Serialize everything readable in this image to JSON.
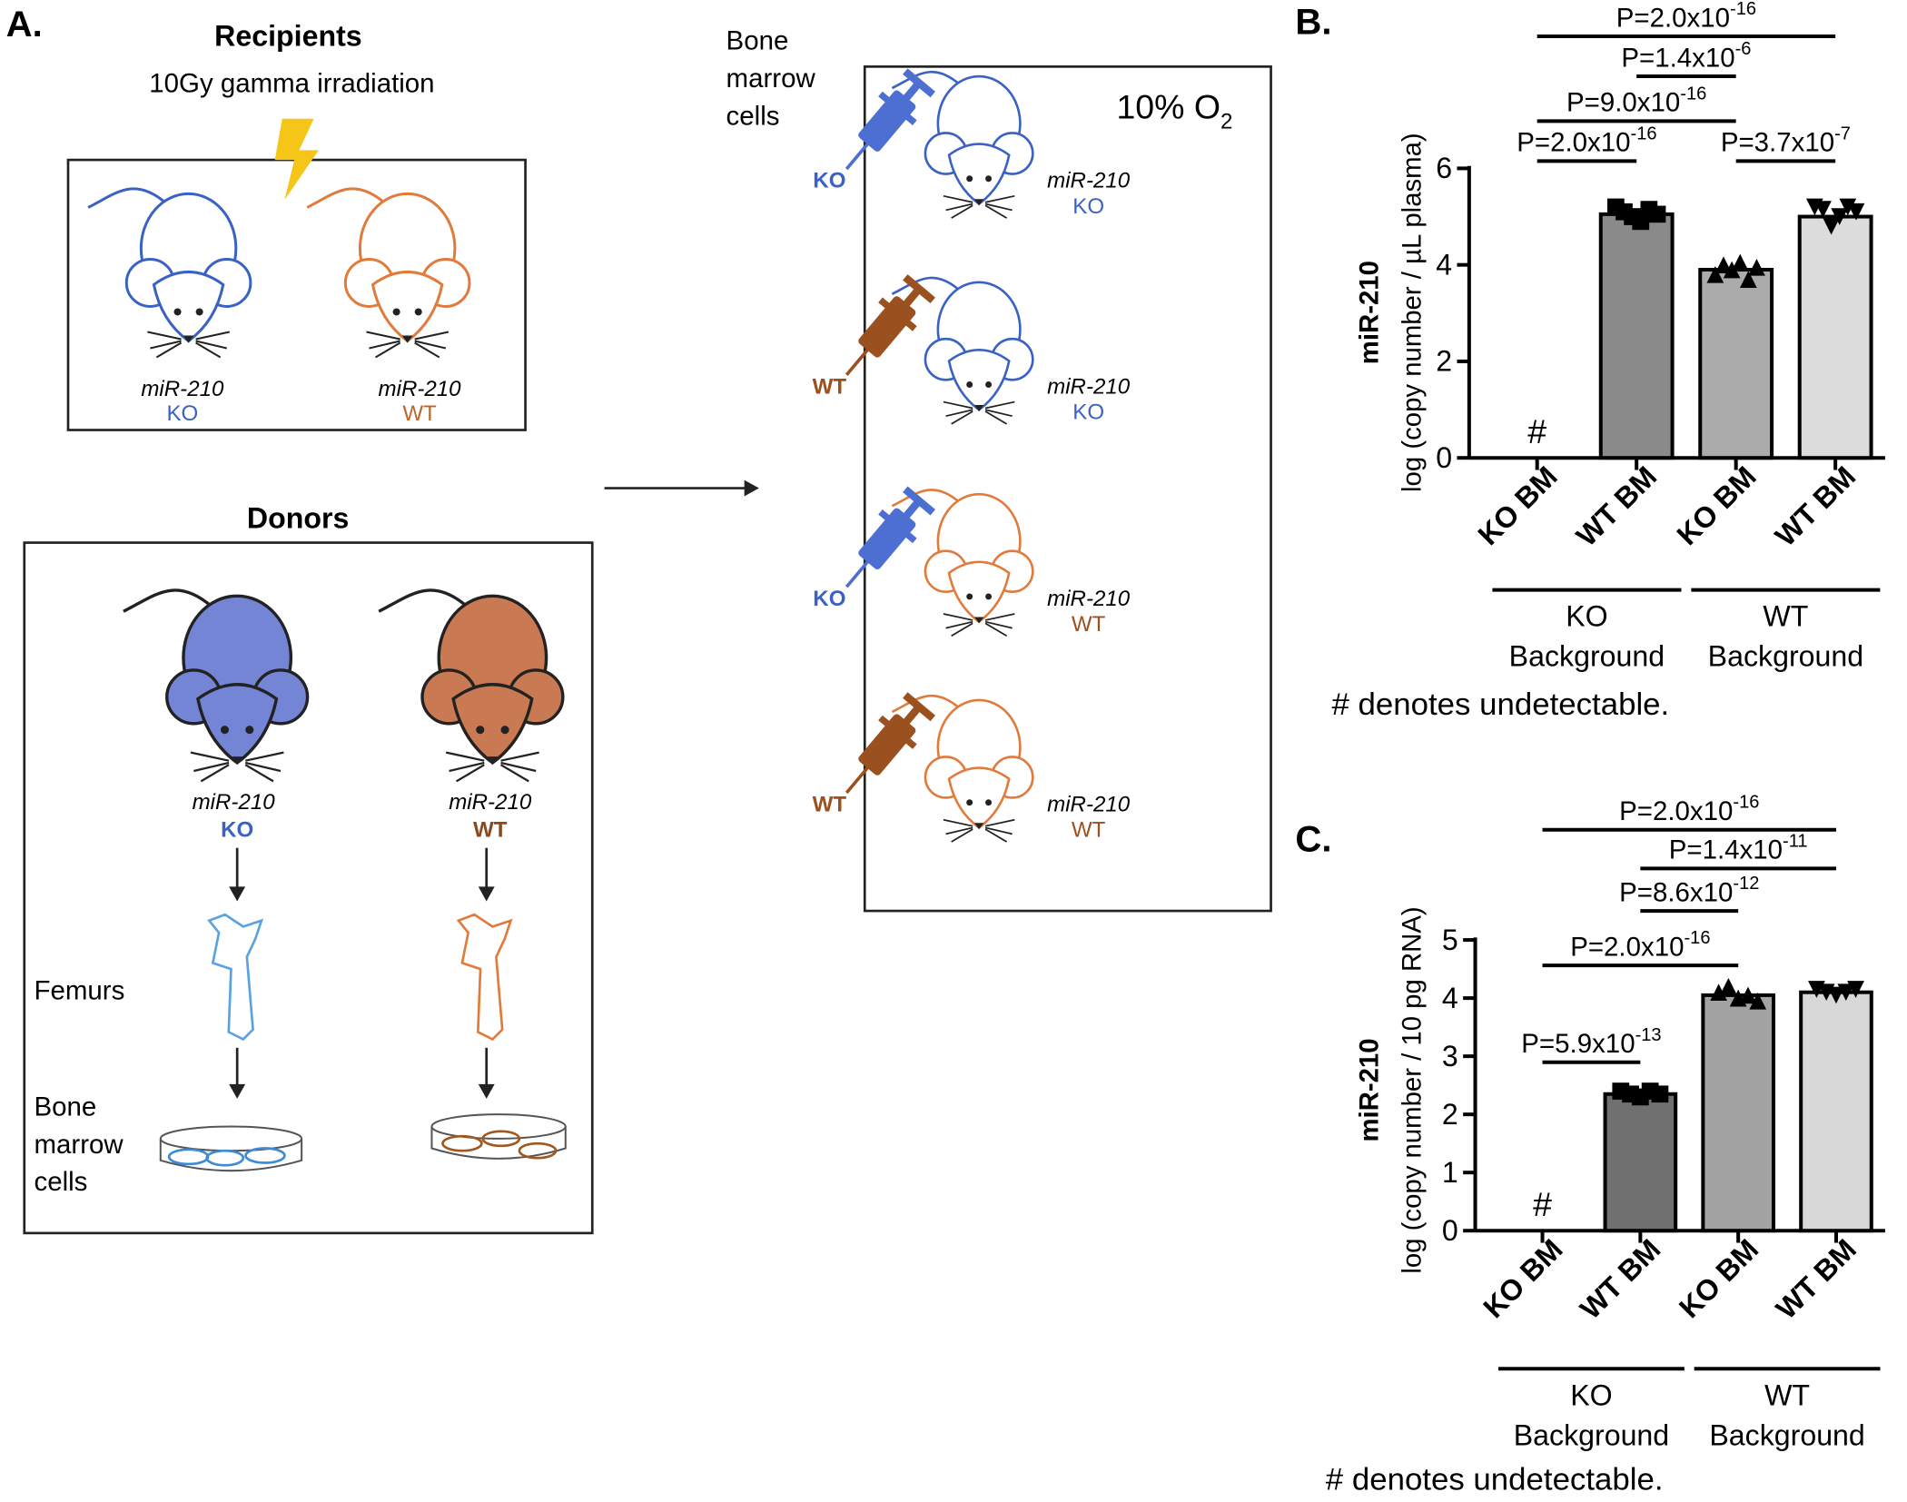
{
  "panel_a": {
    "label": "A.",
    "recipients": {
      "title": "Recipients",
      "treatment": "10Gy gamma irradiation",
      "mice": [
        {
          "gene": "miR-210",
          "genotype": "KO"
        },
        {
          "gene": "miR-210",
          "genotype": "WT"
        }
      ]
    },
    "donors": {
      "title": "Donors",
      "mice": [
        {
          "gene": "miR-210",
          "genotype": "KO"
        },
        {
          "gene": "miR-210",
          "genotype": "WT"
        }
      ],
      "femurs": "Femurs",
      "cells": [
        "Bone",
        "marrow",
        "cells"
      ]
    },
    "transplant": {
      "cells": [
        "Bone",
        "marrow",
        "cells"
      ],
      "oxygen": "10% O",
      "oxygen_subscript": "2",
      "groups": [
        {
          "donor": "KO",
          "gene": "miR-210",
          "recipient": "KO"
        },
        {
          "donor": "WT",
          "gene": "miR-210",
          "recipient": "KO"
        },
        {
          "donor": "KO",
          "gene": "miR-210",
          "recipient": "WT"
        },
        {
          "donor": "WT",
          "gene": "miR-210",
          "recipient": "WT"
        }
      ]
    }
  },
  "chart_data": [
    {
      "type": "bar",
      "panel": "B.",
      "y_label": [
        "miR-210",
        "log (copy number / µL plasma)"
      ],
      "categories": [
        "KO BM",
        "WT BM",
        "KO BM",
        "WT BM"
      ],
      "values": [
        null,
        5.05,
        3.9,
        5.0
      ],
      "value_labels": [
        "#",
        null,
        null,
        null
      ],
      "colors": [
        null,
        "#8a8a8a",
        "#ababab",
        "#dcdcdc"
      ],
      "markers": [
        null,
        "square",
        "triangle",
        "triangle-down"
      ],
      "points": [
        [],
        [
          5.2,
          5.1,
          5.0,
          4.9,
          5.15,
          5.05
        ],
        [
          3.8,
          4.0,
          3.9,
          4.05,
          3.7,
          3.95
        ],
        [
          5.2,
          5.15,
          4.8,
          5.0,
          5.2,
          5.1
        ]
      ],
      "ylim": [
        0,
        6
      ],
      "yticks": [
        0,
        2,
        4,
        6
      ],
      "groups": [
        {
          "label": [
            "KO",
            "Background"
          ],
          "from": 0,
          "to": 1
        },
        {
          "label": [
            "WT",
            "Background"
          ],
          "from": 2,
          "to": 3
        }
      ],
      "comparisons": [
        {
          "label": "P=2.0x10",
          "exponent": "-16",
          "from": 0,
          "to": 3
        },
        {
          "label": "P=1.4x10",
          "exponent": "-6",
          "from": 1,
          "to": 2
        },
        {
          "label": "P=9.0x10",
          "exponent": "-16",
          "from": 0,
          "to": 2
        },
        {
          "label": "P=2.0x10",
          "exponent": "-16",
          "from": 0,
          "to": 1
        },
        {
          "label": "P=3.7x10",
          "exponent": "-7",
          "from": 2,
          "to": 3
        }
      ],
      "footnote": "# denotes undetectable."
    },
    {
      "type": "bar",
      "panel": "C.",
      "y_label": [
        "miR-210",
        "log (copy number / 10 pg RNA)"
      ],
      "categories": [
        "KO BM",
        "WT BM",
        "KO BM",
        "WT BM"
      ],
      "values": [
        null,
        2.35,
        4.05,
        4.1
      ],
      "value_labels": [
        "#",
        null,
        null,
        null
      ],
      "colors": [
        null,
        "#707070",
        "#a3a3a3",
        "#d8d8d8"
      ],
      "markers": [
        null,
        "square",
        "triangle",
        "triangle-down"
      ],
      "points": [
        [],
        [
          2.4,
          2.35,
          2.3,
          2.4,
          2.35
        ],
        [
          4.1,
          4.2,
          4.0,
          4.05,
          3.95
        ],
        [
          4.15,
          4.1,
          4.05,
          4.1,
          4.15
        ]
      ],
      "ylim": [
        0,
        5
      ],
      "yticks": [
        0,
        1,
        2,
        3,
        4,
        5
      ],
      "groups": [
        {
          "label": [
            "KO",
            "Background"
          ],
          "from": 0,
          "to": 1
        },
        {
          "label": [
            "WT",
            "Background"
          ],
          "from": 2,
          "to": 3
        }
      ],
      "comparisons": [
        {
          "label": "P=2.0x10",
          "exponent": "-16",
          "from": 0,
          "to": 3
        },
        {
          "label": "P=1.4x10",
          "exponent": "-11",
          "from": 1,
          "to": 3
        },
        {
          "label": "P=8.6x10",
          "exponent": "-12",
          "from": 1,
          "to": 2
        },
        {
          "label": "P=2.0x10",
          "exponent": "-16",
          "from": 0,
          "to": 2
        },
        {
          "label": "P=5.9x10",
          "exponent": "-13",
          "from": 0,
          "to": 1
        }
      ],
      "footnote": "# denotes undetectable."
    }
  ]
}
